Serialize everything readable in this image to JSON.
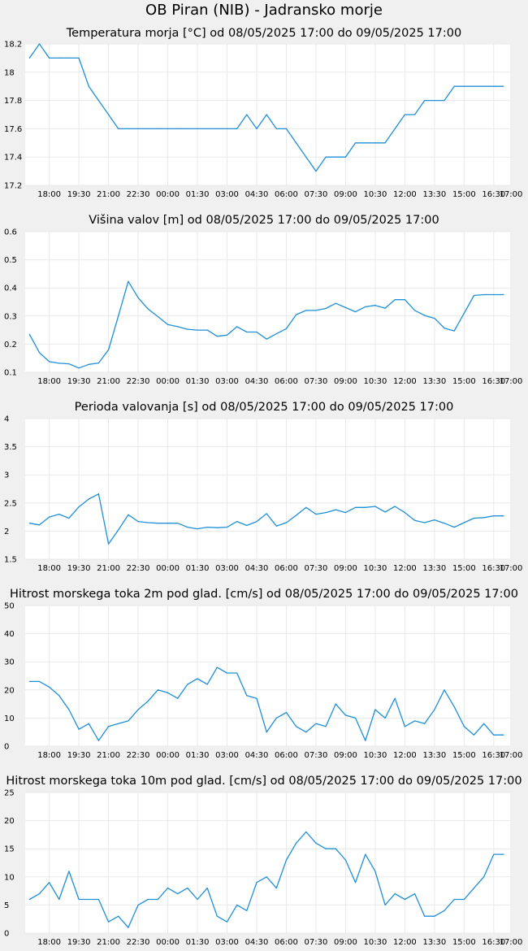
{
  "page_title": "OB Piran (NIB) - Jadransko morje",
  "style": {
    "line_color": "#1f8fd6",
    "plot_background": "#ffffff",
    "page_background": "#f0f0f0",
    "grid_color": "#e9e9e9"
  },
  "chart_data": [
    {
      "type": "line",
      "title": "Temperatura morja [°C] od 08/05/2025 17:00 do 09/05/2025 17:00",
      "xlabel": "",
      "ylabel": "",
      "grid": true,
      "x_ticks": [
        "18:00",
        "19:30",
        "21:00",
        "22:30",
        "00:00",
        "01:30",
        "03:00",
        "04:30",
        "06:00",
        "07:30",
        "09:00",
        "10:30",
        "12:00",
        "13:30",
        "15:00",
        "16:30",
        "17:00"
      ],
      "y_ticks": [
        "17.2",
        "17.4",
        "17.6",
        "17.8",
        "18",
        "18.2"
      ],
      "ylim": [
        17.2,
        18.2
      ],
      "series": [
        {
          "x": [
            "17:00",
            "17:30",
            "18:00",
            "18:30",
            "19:00",
            "19:30",
            "20:00",
            "20:30",
            "21:00",
            "21:30",
            "22:00",
            "22:30",
            "23:00",
            "23:30",
            "00:00",
            "00:30",
            "01:00",
            "01:30",
            "02:00",
            "02:30",
            "03:00",
            "03:30",
            "04:00",
            "04:30",
            "05:00",
            "05:30",
            "06:00",
            "06:30",
            "07:00",
            "07:30",
            "08:00",
            "08:30",
            "09:00",
            "09:30",
            "10:00",
            "10:30",
            "11:00",
            "11:30",
            "12:00",
            "12:30",
            "13:00",
            "13:30",
            "14:00",
            "14:30",
            "15:00",
            "15:30",
            "16:00",
            "16:30",
            "17:00"
          ],
          "values": [
            18.1,
            18.2,
            18.1,
            18.1,
            18.1,
            18.1,
            17.9,
            17.8,
            17.7,
            17.6,
            17.6,
            17.6,
            17.6,
            17.6,
            17.6,
            17.6,
            17.6,
            17.6,
            17.6,
            17.6,
            17.6,
            17.6,
            17.7,
            17.6,
            17.7,
            17.6,
            17.6,
            17.5,
            17.4,
            17.3,
            17.4,
            17.4,
            17.4,
            17.5,
            17.5,
            17.5,
            17.5,
            17.6,
            17.7,
            17.7,
            17.8,
            17.8,
            17.8,
            17.9,
            17.9,
            17.9,
            17.9,
            17.9,
            17.9
          ]
        }
      ]
    },
    {
      "type": "line",
      "title": "Višina valov [m] od 08/05/2025 17:00 do 09/05/2025 17:00",
      "xlabel": "",
      "ylabel": "",
      "grid": true,
      "x_ticks": [
        "18:00",
        "19:30",
        "21:00",
        "22:30",
        "00:00",
        "01:30",
        "03:00",
        "04:30",
        "06:00",
        "07:30",
        "09:00",
        "10:30",
        "12:00",
        "13:30",
        "15:00",
        "16:30",
        "17:00"
      ],
      "y_ticks": [
        "0.1",
        "0.2",
        "0.3",
        "0.4",
        "0.5",
        "0.6"
      ],
      "ylim": [
        0.1,
        0.6
      ],
      "series": [
        {
          "x": [
            "17:00",
            "17:30",
            "18:00",
            "18:30",
            "19:00",
            "19:30",
            "20:00",
            "20:30",
            "21:00",
            "21:30",
            "22:00",
            "22:30",
            "23:00",
            "23:30",
            "00:00",
            "00:30",
            "01:00",
            "01:30",
            "02:00",
            "02:30",
            "03:00",
            "03:30",
            "04:00",
            "04:30",
            "05:00",
            "05:30",
            "06:00",
            "06:30",
            "07:00",
            "07:30",
            "08:00",
            "08:30",
            "09:00",
            "09:30",
            "10:00",
            "10:30",
            "11:00",
            "11:30",
            "12:00",
            "12:30",
            "13:00",
            "13:30",
            "14:00",
            "14:30",
            "15:00",
            "15:30",
            "16:00",
            "16:30",
            "17:00"
          ],
          "values": [
            0.235,
            0.17,
            0.138,
            0.132,
            0.13,
            0.115,
            0.128,
            0.133,
            0.18,
            0.3,
            0.423,
            0.365,
            0.325,
            0.298,
            0.27,
            0.262,
            0.253,
            0.25,
            0.25,
            0.228,
            0.232,
            0.262,
            0.243,
            0.243,
            0.218,
            0.237,
            0.255,
            0.305,
            0.32,
            0.32,
            0.327,
            0.345,
            0.33,
            0.315,
            0.333,
            0.338,
            0.328,
            0.358,
            0.358,
            0.32,
            0.302,
            0.292,
            0.257,
            0.247,
            0.31,
            0.373,
            0.376,
            0.376,
            0.376
          ]
        }
      ]
    },
    {
      "type": "line",
      "title": "Perioda valovanja [s] od 08/05/2025 17:00 do 09/05/2025 17:00",
      "xlabel": "",
      "ylabel": "",
      "grid": true,
      "x_ticks": [
        "18:00",
        "19:30",
        "21:00",
        "22:30",
        "00:00",
        "01:30",
        "03:00",
        "04:30",
        "06:00",
        "07:30",
        "09:00",
        "10:30",
        "12:00",
        "13:30",
        "15:00",
        "16:30",
        "17:00"
      ],
      "y_ticks": [
        "1.5",
        "2",
        "2.5",
        "3",
        "3.5",
        "4"
      ],
      "ylim": [
        1.5,
        4
      ],
      "series": [
        {
          "x": [
            "17:00",
            "17:30",
            "18:00",
            "18:30",
            "19:00",
            "19:30",
            "20:00",
            "20:30",
            "21:00",
            "21:30",
            "22:00",
            "22:30",
            "23:00",
            "23:30",
            "00:00",
            "00:30",
            "01:00",
            "01:30",
            "02:00",
            "02:30",
            "03:00",
            "03:30",
            "04:00",
            "04:30",
            "05:00",
            "05:30",
            "06:00",
            "06:30",
            "07:00",
            "07:30",
            "08:00",
            "08:30",
            "09:00",
            "09:30",
            "10:00",
            "10:30",
            "11:00",
            "11:30",
            "12:00",
            "12:30",
            "13:00",
            "13:30",
            "14:00",
            "14:30",
            "15:00",
            "15:30",
            "16:00",
            "16:30",
            "17:00"
          ],
          "values": [
            2.14,
            2.11,
            2.25,
            2.3,
            2.23,
            2.43,
            2.57,
            2.66,
            1.77,
            2.02,
            2.29,
            2.17,
            2.15,
            2.14,
            2.14,
            2.14,
            2.07,
            2.04,
            2.07,
            2.06,
            2.07,
            2.17,
            2.1,
            2.17,
            2.31,
            2.09,
            2.15,
            2.28,
            2.42,
            2.3,
            2.33,
            2.38,
            2.33,
            2.42,
            2.42,
            2.44,
            2.34,
            2.44,
            2.33,
            2.19,
            2.15,
            2.2,
            2.14,
            2.07,
            2.15,
            2.23,
            2.24,
            2.27,
            2.27
          ]
        }
      ]
    },
    {
      "type": "line",
      "title": "Hitrost morskega toka 2m pod glad. [cm/s] od 08/05/2025 17:00 do 09/05/2025 17:00",
      "xlabel": "",
      "ylabel": "",
      "grid": true,
      "x_ticks": [
        "18:00",
        "19:30",
        "21:00",
        "22:30",
        "00:00",
        "01:30",
        "03:00",
        "04:30",
        "06:00",
        "07:30",
        "09:00",
        "10:30",
        "12:00",
        "13:30",
        "15:00",
        "16:30",
        "17:00"
      ],
      "y_ticks": [
        "0",
        "10",
        "20",
        "30",
        "40",
        "50"
      ],
      "ylim": [
        0,
        50
      ],
      "series": [
        {
          "x": [
            "17:00",
            "17:30",
            "18:00",
            "18:30",
            "19:00",
            "19:30",
            "20:00",
            "20:30",
            "21:00",
            "21:30",
            "22:00",
            "22:30",
            "23:00",
            "23:30",
            "00:00",
            "00:30",
            "01:00",
            "01:30",
            "02:00",
            "02:30",
            "03:00",
            "03:30",
            "04:00",
            "04:30",
            "05:00",
            "05:30",
            "06:00",
            "06:30",
            "07:00",
            "07:30",
            "08:00",
            "08:30",
            "09:00",
            "09:30",
            "10:00",
            "10:30",
            "11:00",
            "11:30",
            "12:00",
            "12:30",
            "13:00",
            "13:30",
            "14:00",
            "14:30",
            "15:00",
            "15:30",
            "16:00",
            "16:30",
            "17:00"
          ],
          "values": [
            23,
            23,
            21,
            18,
            13,
            6,
            8,
            2,
            7,
            8,
            9,
            13,
            16,
            20,
            19,
            17,
            22,
            24,
            22,
            28,
            26,
            26,
            18,
            17,
            5,
            10,
            12,
            7,
            5,
            8,
            7,
            15,
            11,
            10,
            2,
            13,
            10,
            17,
            7,
            9,
            8,
            13,
            20,
            14,
            7,
            4,
            8,
            4,
            4
          ]
        }
      ]
    },
    {
      "type": "line",
      "title": "Hitrost morskega toka 10m pod glad. [cm/s] od 08/05/2025 17:00 do 09/05/2025 17:00",
      "xlabel": "",
      "ylabel": "",
      "grid": true,
      "x_ticks": [
        "18:00",
        "19:30",
        "21:00",
        "22:30",
        "00:00",
        "01:30",
        "03:00",
        "04:30",
        "06:00",
        "07:30",
        "09:00",
        "10:30",
        "12:00",
        "13:30",
        "15:00",
        "16:30",
        "17:00"
      ],
      "y_ticks": [
        "0",
        "5",
        "10",
        "15",
        "20",
        "25"
      ],
      "ylim": [
        0,
        25
      ],
      "series": [
        {
          "x": [
            "17:00",
            "17:30",
            "18:00",
            "18:30",
            "19:00",
            "19:30",
            "20:00",
            "20:30",
            "21:00",
            "21:30",
            "22:00",
            "22:30",
            "23:00",
            "23:30",
            "00:00",
            "00:30",
            "01:00",
            "01:30",
            "02:00",
            "02:30",
            "03:00",
            "03:30",
            "04:00",
            "04:30",
            "05:00",
            "05:30",
            "06:00",
            "06:30",
            "07:00",
            "07:30",
            "08:00",
            "08:30",
            "09:00",
            "09:30",
            "10:00",
            "10:30",
            "11:00",
            "11:30",
            "12:00",
            "12:30",
            "13:00",
            "13:30",
            "14:00",
            "14:30",
            "15:00",
            "15:30",
            "16:00",
            "16:30",
            "17:00"
          ],
          "values": [
            6,
            7,
            9,
            6,
            11,
            6,
            6,
            6,
            2,
            3,
            1,
            5,
            6,
            6,
            8,
            7,
            8,
            6,
            8,
            3,
            2,
            5,
            4,
            9,
            10,
            8,
            13,
            16,
            18,
            16,
            15,
            15,
            13,
            9,
            14,
            11,
            5,
            7,
            6,
            7,
            3,
            3,
            4,
            6,
            6,
            8,
            10,
            14,
            14
          ]
        }
      ]
    }
  ]
}
